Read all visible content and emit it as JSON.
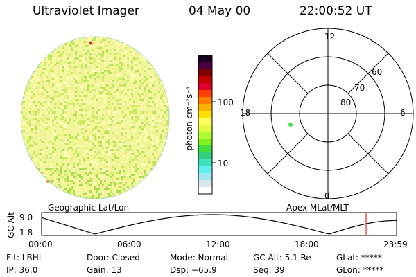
{
  "header": {
    "instrument": "Ultraviolet Imager",
    "date": "04 May 00",
    "time": "22:00:52 UT"
  },
  "colorbar": {
    "unit_label": "photon cm⁻²s⁻¹",
    "tick_high": "100",
    "tick_low": "10",
    "colors": [
      "#1a0020",
      "#4a0040",
      "#800000",
      "#c00000",
      "#e00030",
      "#ff4000",
      "#ff8000",
      "#ffb000",
      "#ffe000",
      "#ffff60",
      "#e0ff40",
      "#b0ff30",
      "#80f020",
      "#40e040",
      "#30d080",
      "#40e0c0",
      "#60f0f0",
      "#a0e8f0",
      "#d8e8f0",
      "#ffffff"
    ]
  },
  "globe": {
    "caption": "Geographic Lat/Lon",
    "base_color": "#f2f59a"
  },
  "polar": {
    "caption": "Apex MLat/MLT",
    "mlt_top": "12",
    "mlt_bottom": "0",
    "mlt_left": "18",
    "mlt_right": "6",
    "lat_labels": [
      "60",
      "70",
      "80"
    ],
    "marker_color": "#40e040"
  },
  "orbit": {
    "y_axis_label": "GC Alt",
    "y_top": "9.0",
    "y_bottom": "1.8",
    "x_ticks": [
      "00:00",
      "06:00",
      "12:00",
      "18:00",
      "23:59"
    ],
    "current_marker_color": "#e03030"
  },
  "status": {
    "filter": "Flt: LBHL",
    "ip": "IP: 36.0",
    "door": "Door: Closed",
    "gain": "Gain: 13",
    "mode": "Mode: Normal",
    "dsp": "Dsp: −65.9",
    "gc_alt": "GC Alt: 5.1 Re",
    "seq": "Seq: 39",
    "glat": "GLat: *****",
    "glon": "GLon: *****"
  }
}
